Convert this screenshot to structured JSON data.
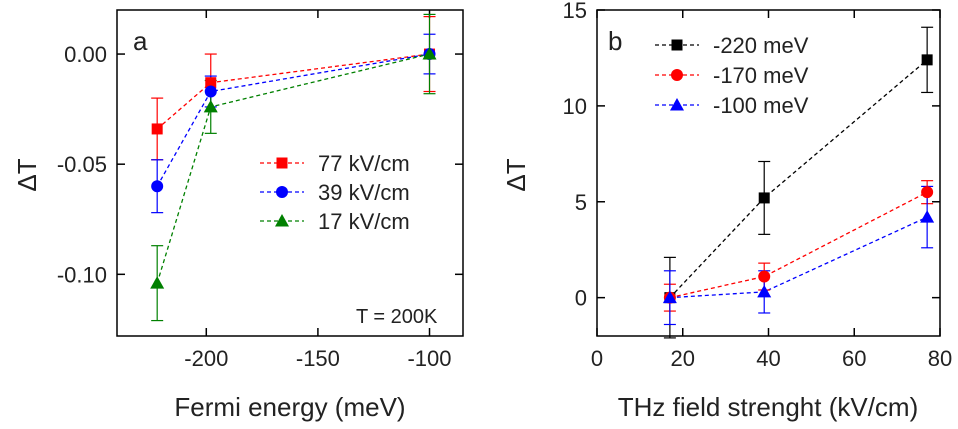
{
  "chart_data": [
    {
      "type": "line",
      "panel": "a",
      "xlabel": "Fermi energy (meV)",
      "ylabel": "ΔT",
      "xlim": [
        -240,
        -85
      ],
      "ylim": [
        -0.128,
        0.02
      ],
      "xticks": [
        -200,
        -150,
        -100
      ],
      "xtick_labels": [
        "-200",
        "-150",
        "-100"
      ],
      "yticks": [
        0.0,
        -0.05,
        -0.1
      ],
      "ytick_labels": [
        "0.00",
        "-0.05",
        "-0.10"
      ],
      "legend_position": "center-right",
      "annotation": "T = 200K",
      "grid": false,
      "series": [
        {
          "name": "77 kV/cm",
          "color": "#ff0000",
          "marker": "square",
          "x": [
            -222,
            -198,
            -100
          ],
          "y": [
            -0.034,
            -0.013,
            0.0
          ],
          "err": [
            0.014,
            0.013,
            0.017
          ]
        },
        {
          "name": "39 kV/cm",
          "color": "#0000ff",
          "marker": "circle",
          "x": [
            -222,
            -198,
            -100
          ],
          "y": [
            -0.06,
            -0.017,
            0.0
          ],
          "err": [
            0.012,
            0.007,
            0.009
          ]
        },
        {
          "name": "17 kV/cm",
          "color": "#008000",
          "marker": "triangle",
          "x": [
            -222,
            -198,
            -100
          ],
          "y": [
            -0.104,
            -0.024,
            0.0
          ],
          "err": [
            0.017,
            0.012,
            0.018
          ]
        }
      ]
    },
    {
      "type": "line",
      "panel": "b",
      "xlabel": "THz field strenght (kV/cm)",
      "ylabel": "ΔT",
      "xlim": [
        0,
        80
      ],
      "ylim": [
        -2,
        15
      ],
      "xticks": [
        0,
        20,
        40,
        60,
        80
      ],
      "xtick_labels": [
        "0",
        "20",
        "40",
        "60",
        "80"
      ],
      "yticks": [
        0,
        5,
        10,
        15
      ],
      "ytick_labels": [
        "0",
        "5",
        "10",
        "15"
      ],
      "legend_position": "top-left",
      "grid": false,
      "series": [
        {
          "name": "-220 meV",
          "color": "#000000",
          "marker": "square",
          "x": [
            17,
            39,
            77
          ],
          "y": [
            0.0,
            5.2,
            12.4
          ],
          "err": [
            2.1,
            1.9,
            1.7
          ]
        },
        {
          "name": "-170 meV",
          "color": "#ff0000",
          "marker": "circle",
          "x": [
            17,
            39,
            77
          ],
          "y": [
            0.0,
            1.1,
            5.5
          ],
          "err": [
            0.7,
            0.7,
            0.6
          ]
        },
        {
          "name": "-100 meV",
          "color": "#0000ff",
          "marker": "triangle",
          "x": [
            17,
            39,
            77
          ],
          "y": [
            0.0,
            0.3,
            4.2
          ],
          "err": [
            1.4,
            1.1,
            1.6
          ]
        }
      ]
    }
  ]
}
